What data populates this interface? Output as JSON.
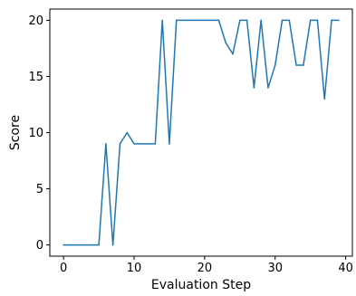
{
  "chart_data": {
    "type": "line",
    "title": "",
    "xlabel": "Evaluation Step",
    "ylabel": "Score",
    "xlim": [
      -1.95,
      40.95
    ],
    "ylim": [
      -1,
      21
    ],
    "xticks": [
      0,
      10,
      20,
      30,
      40
    ],
    "yticks": [
      0,
      5,
      10,
      15,
      20
    ],
    "grid": false,
    "legend": "none",
    "series": [
      {
        "color": "#1f77b4",
        "x": [
          0,
          1,
          2,
          3,
          4,
          5,
          6,
          7,
          8,
          9,
          10,
          11,
          12,
          13,
          14,
          15,
          16,
          17,
          18,
          19,
          20,
          21,
          22,
          23,
          24,
          25,
          26,
          27,
          28,
          29,
          30,
          31,
          32,
          33,
          34,
          35,
          36,
          37,
          38,
          39
        ],
        "y": [
          0,
          0,
          0,
          0,
          0,
          0,
          9,
          0,
          9,
          10,
          9,
          9,
          9,
          9,
          20,
          9,
          20,
          20,
          20,
          20,
          20,
          20,
          20,
          18,
          17,
          20,
          20,
          14,
          20,
          14,
          16,
          20,
          20,
          16,
          16,
          20,
          20,
          13,
          20,
          20
        ]
      }
    ]
  }
}
